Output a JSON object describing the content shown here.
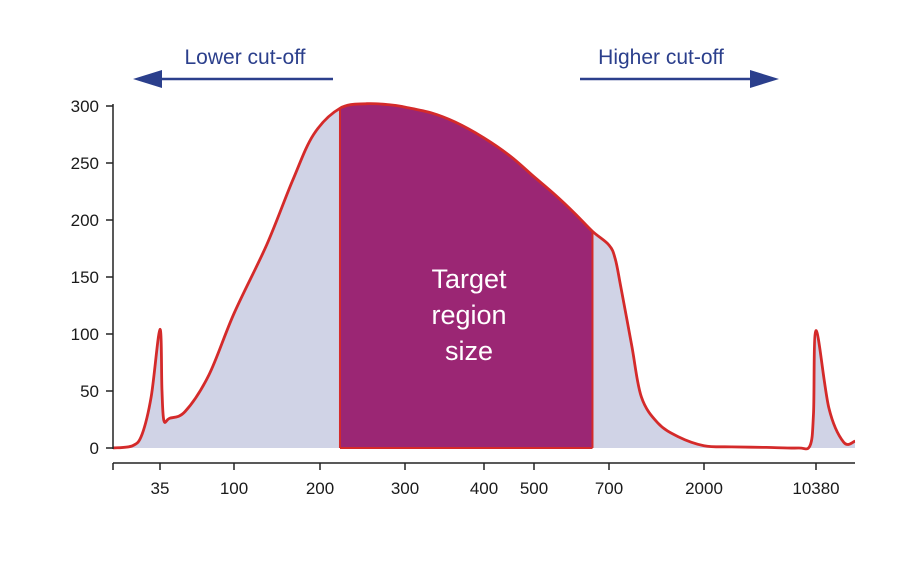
{
  "colors": {
    "curve": "#d42a2a",
    "fill": "#d0d3e6",
    "target": "#9b2674",
    "arrow": "#2b3f8c",
    "axis": "#222222"
  },
  "chart_data": {
    "type": "area",
    "title": "",
    "xlabel": "",
    "ylabel": "",
    "ylim": [
      0,
      300
    ],
    "yticks": [
      0,
      50,
      100,
      150,
      200,
      250,
      300
    ],
    "xticks": [
      "35",
      "100",
      "200",
      "300",
      "400",
      "500",
      "700",
      "2000",
      "10380"
    ],
    "xscale": "log",
    "grid": false,
    "series": [
      {
        "x": [
          30,
          32,
          33,
          34,
          35,
          36,
          37,
          40,
          50,
          70,
          100,
          130,
          160,
          190,
          220,
          250,
          280,
          300,
          330,
          360,
          400,
          450,
          500,
          550,
          600,
          650,
          700,
          750,
          800,
          900,
          1000,
          1200,
          1500,
          2000,
          3000,
          5000,
          8000,
          9500,
          10000,
          10380,
          10800,
          11300,
          11700
        ],
        "values": [
          0,
          2,
          12,
          45,
          104,
          50,
          24,
          26,
          32,
          64,
          118,
          178,
          234,
          275,
          298,
          302,
          301,
          299,
          294,
          286,
          272,
          256,
          238,
          222,
          206,
          190,
          178,
          166,
          140,
          90,
          45,
          22,
          10,
          2,
          1,
          0.5,
          0,
          2,
          30,
          103,
          35,
          5,
          6
        ]
      }
    ],
    "target_region": {
      "label": "Target region size",
      "label_lines": [
        "Target",
        "region",
        "size"
      ],
      "x_start": 220,
      "x_end": 650
    },
    "annotations": {
      "lower_cutoff": "Lower cut-off",
      "higher_cutoff": "Higher cut-off"
    }
  }
}
